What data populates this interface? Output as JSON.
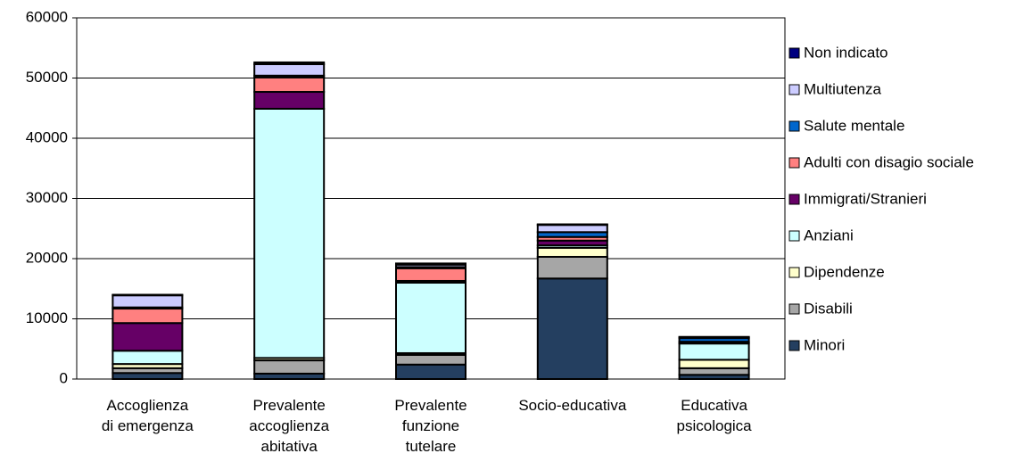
{
  "chart_data": {
    "type": "bar",
    "stacked": true,
    "categories": [
      "Accoglienza\ndi emergenza",
      "Prevalente\naccoglienza\nabitativa",
      "Prevalente\nfunzione\ntutelare",
      "Socio-educativa",
      "Educativa\npsicologica"
    ],
    "series": [
      {
        "name": "Minori",
        "color": "#243f60",
        "values": [
          1000,
          900,
          2400,
          16700,
          700
        ]
      },
      {
        "name": "Disabili",
        "color": "#a6a6a6",
        "values": [
          800,
          2200,
          1600,
          3600,
          1100
        ]
      },
      {
        "name": "Dipendenze",
        "color": "#ffffcc",
        "values": [
          700,
          400,
          300,
          1500,
          1400
        ]
      },
      {
        "name": "Anziani",
        "color": "#ccffff",
        "values": [
          2200,
          41400,
          11700,
          400,
          2700
        ]
      },
      {
        "name": "Immigrati/Stranieri",
        "color": "#660066",
        "values": [
          4600,
          2800,
          300,
          800,
          100
        ]
      },
      {
        "name": "Adulti con disagio sociale",
        "color": "#ff8080",
        "values": [
          2400,
          2400,
          2100,
          600,
          200
        ]
      },
      {
        "name": "Salute mentale",
        "color": "#0066cc",
        "values": [
          200,
          300,
          200,
          800,
          600
        ]
      },
      {
        "name": "Multiutenza",
        "color": "#ccccff",
        "values": [
          2000,
          1900,
          400,
          1200,
          100
        ]
      },
      {
        "name": "Non indicato",
        "color": "#000080",
        "values": [
          100,
          300,
          200,
          100,
          100
        ]
      }
    ],
    "ylim": [
      0,
      60000
    ],
    "yticks": [
      0,
      10000,
      20000,
      30000,
      40000,
      50000,
      60000
    ],
    "grid": true,
    "legend": "right"
  }
}
